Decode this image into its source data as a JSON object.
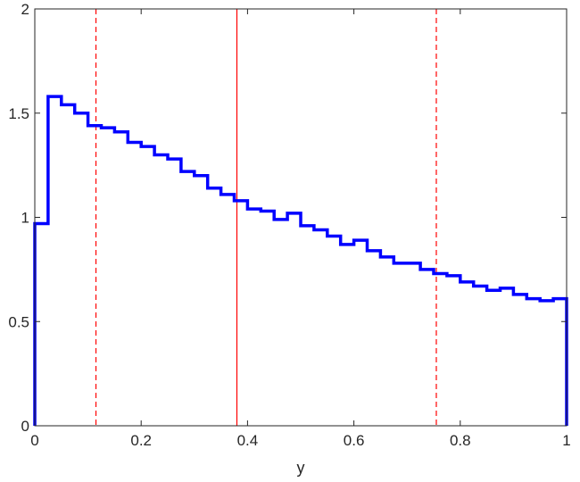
{
  "chart_data": {
    "type": "histogram",
    "title": "",
    "xlabel": "y",
    "ylabel": "",
    "xlim": [
      0,
      1
    ],
    "ylim": [
      0,
      2
    ],
    "xticks": [
      0,
      0.2,
      0.4,
      0.6,
      0.8,
      1
    ],
    "xtick_labels": [
      "0",
      "0.2",
      "0.4",
      "0.6",
      "0.8",
      "1"
    ],
    "yticks": [
      0,
      0.5,
      1,
      1.5,
      2
    ],
    "ytick_labels": [
      "0",
      "0.5",
      "1",
      "1.5",
      "2"
    ],
    "grid": false,
    "box": true,
    "bin_edges": [
      0,
      0.025,
      0.05,
      0.075,
      0.1,
      0.125,
      0.15,
      0.175,
      0.2,
      0.225,
      0.25,
      0.275,
      0.3,
      0.325,
      0.35,
      0.375,
      0.4,
      0.425,
      0.45,
      0.475,
      0.5,
      0.525,
      0.55,
      0.575,
      0.6,
      0.625,
      0.65,
      0.675,
      0.7,
      0.725,
      0.75,
      0.775,
      0.8,
      0.825,
      0.85,
      0.875,
      0.9,
      0.925,
      0.95,
      0.975,
      1
    ],
    "series": [
      {
        "color": "#0000ff",
        "values": [
          0.97,
          1.58,
          1.54,
          1.5,
          1.44,
          1.43,
          1.41,
          1.36,
          1.34,
          1.3,
          1.28,
          1.22,
          1.2,
          1.14,
          1.11,
          1.08,
          1.04,
          1.03,
          0.99,
          1.02,
          0.96,
          0.94,
          0.91,
          0.87,
          0.89,
          0.84,
          0.81,
          0.78,
          0.78,
          0.75,
          0.73,
          0.72,
          0.69,
          0.67,
          0.65,
          0.66,
          0.63,
          0.61,
          0.6,
          0.61
        ]
      }
    ],
    "reference_lines": [
      {
        "x": 0.38,
        "style": "solid",
        "color": "#ff0000"
      },
      {
        "x": 0.115,
        "style": "dashed",
        "color": "#ff0000"
      },
      {
        "x": 0.755,
        "style": "dashed",
        "color": "#ff0000"
      }
    ]
  }
}
